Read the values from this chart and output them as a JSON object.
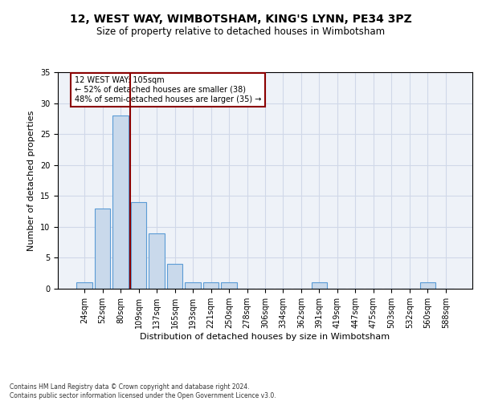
{
  "title1": "12, WEST WAY, WIMBOTSHAM, KING'S LYNN, PE34 3PZ",
  "title2": "Size of property relative to detached houses in Wimbotsham",
  "xlabel": "Distribution of detached houses by size in Wimbotsham",
  "ylabel": "Number of detached properties",
  "footnote": "Contains HM Land Registry data © Crown copyright and database right 2024.\nContains public sector information licensed under the Open Government Licence v3.0.",
  "bin_labels": [
    "24sqm",
    "52sqm",
    "80sqm",
    "109sqm",
    "137sqm",
    "165sqm",
    "193sqm",
    "221sqm",
    "250sqm",
    "278sqm",
    "306sqm",
    "334sqm",
    "362sqm",
    "391sqm",
    "419sqm",
    "447sqm",
    "475sqm",
    "503sqm",
    "532sqm",
    "560sqm",
    "588sqm"
  ],
  "bar_values": [
    1,
    13,
    28,
    14,
    9,
    4,
    1,
    1,
    1,
    0,
    0,
    0,
    0,
    1,
    0,
    0,
    0,
    0,
    0,
    1,
    0
  ],
  "bar_color": "#c9d9eb",
  "bar_edge_color": "#5b9bd5",
  "vline_x": 2.52,
  "vline_color": "#8b0000",
  "annotation_text": "12 WEST WAY: 105sqm\n← 52% of detached houses are smaller (38)\n48% of semi-detached houses are larger (35) →",
  "annotation_box_color": "#8b0000",
  "ylim": [
    0,
    35
  ],
  "yticks": [
    0,
    5,
    10,
    15,
    20,
    25,
    30,
    35
  ],
  "grid_color": "#d0d8e8",
  "background_color": "#eef2f8",
  "title1_fontsize": 10,
  "title2_fontsize": 8.5,
  "xlabel_fontsize": 8,
  "ylabel_fontsize": 8,
  "annot_fontsize": 7,
  "tick_fontsize": 7,
  "footnote_fontsize": 5.5
}
